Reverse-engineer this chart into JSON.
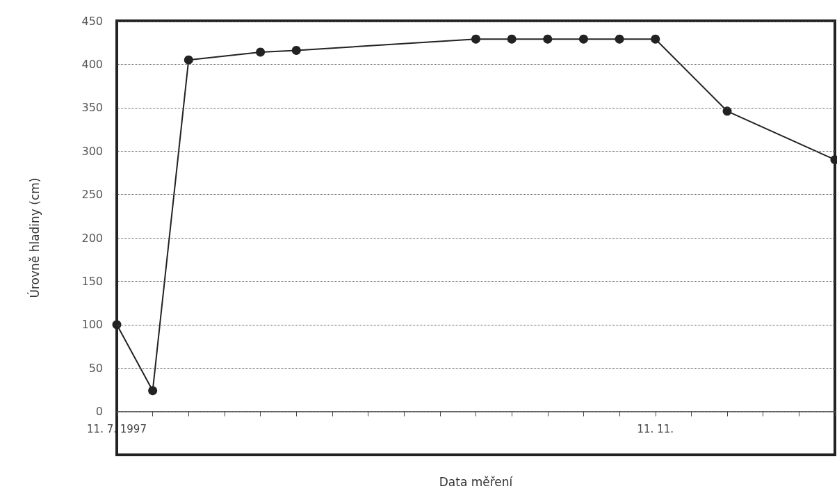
{
  "chart_data": {
    "type": "line",
    "xlabel": "Data měření",
    "ylabel": "Úrovně hladiny (cm)",
    "categories": [
      "11. 7. 1997",
      null,
      null,
      null,
      null,
      null,
      null,
      null,
      null,
      null,
      null,
      null,
      null,
      null,
      null,
      "11. 11.",
      null,
      null,
      null,
      null,
      null
    ],
    "series": [
      {
        "color": "#222222",
        "values": [
          100,
          24,
          405,
          null,
          414,
          416,
          null,
          null,
          null,
          null,
          429,
          429,
          429,
          429,
          429,
          429,
          null,
          346,
          null,
          null,
          290
        ]
      }
    ],
    "ylim": [
      -50,
      450
    ],
    "yticks": [
      0,
      50,
      100,
      150,
      200,
      250,
      300,
      350,
      400,
      450
    ],
    "grid": "y",
    "marker": "circle",
    "line_style": "solid"
  }
}
